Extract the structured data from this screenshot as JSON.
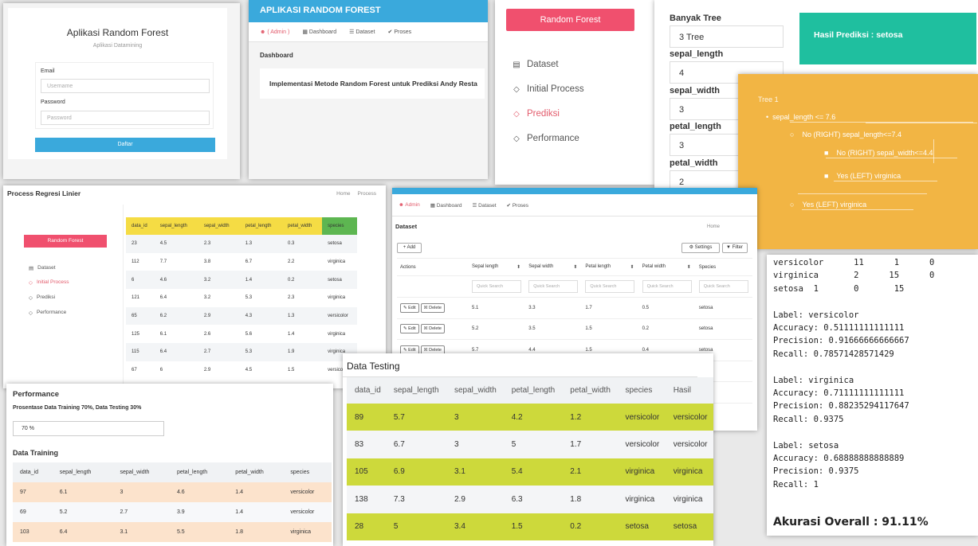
{
  "login": {
    "title": "Aplikasi Random Forest",
    "subtitle": "Aplikasi Datamining",
    "email_label": "Email",
    "email_placeholder": "Username",
    "password_label": "Password",
    "password_placeholder": "Password",
    "submit_label": "Daftar"
  },
  "app": {
    "header": "APLIKASI RANDOM FOREST",
    "nav": {
      "admin": "( Admin )",
      "dashboard": "Dashboard",
      "dataset": "Dataset",
      "proses": "Proses"
    },
    "section": "Dashboard",
    "card_text": "Implementasi Metode Random Forest untuk Prediksi Andy Resta"
  },
  "menu": {
    "brand": "Random Forest",
    "items": [
      {
        "label": "Dataset",
        "icon": "inbox-icon"
      },
      {
        "label": "Initial Process",
        "icon": "tag-icon"
      },
      {
        "label": "Prediksi",
        "icon": "tag-icon",
        "active": true
      },
      {
        "label": "Performance",
        "icon": "tag-icon"
      }
    ]
  },
  "form": {
    "fields": [
      {
        "label": "Banyak Tree",
        "value": "3 Tree"
      },
      {
        "label": "sepal_length",
        "value": "4"
      },
      {
        "label": "sepal_width",
        "value": "3"
      },
      {
        "label": "petal_length",
        "value": "3"
      },
      {
        "label": "petal_width",
        "value": "2"
      }
    ],
    "result": "Hasil Prediksi : setosa"
  },
  "tree": {
    "title": "Tree 1",
    "n1": "sepal_length <= 7.6",
    "n2": "No (RIGHT) sepal_length<=7.4",
    "n3": "No (RIGHT) sepal_width<=4.4",
    "n4": "Yes (LEFT) virginica",
    "n5": "Yes (LEFT) virginica"
  },
  "regresi": {
    "title": "Process Regresi Linier",
    "breadcrumb": [
      "Home",
      "Process"
    ],
    "brand": "Random Forest",
    "menu": [
      "Dataset",
      "Initial Process",
      "Prediksi",
      "Performance"
    ],
    "columns": [
      "data_id",
      "sepal_length",
      "sepal_width",
      "petal_length",
      "petal_width",
      "species"
    ],
    "rows": [
      [
        "23",
        "4.5",
        "2.3",
        "1.3",
        "0.3",
        "setosa"
      ],
      [
        "112",
        "7.7",
        "3.8",
        "6.7",
        "2.2",
        "virginica"
      ],
      [
        "6",
        "4.6",
        "3.2",
        "1.4",
        "0.2",
        "setosa"
      ],
      [
        "121",
        "6.4",
        "3.2",
        "5.3",
        "2.3",
        "virginica"
      ],
      [
        "65",
        "6.2",
        "2.9",
        "4.3",
        "1.3",
        "versicolor"
      ],
      [
        "125",
        "6.1",
        "2.6",
        "5.6",
        "1.4",
        "virginica"
      ],
      [
        "115",
        "6.4",
        "2.7",
        "5.3",
        "1.9",
        "virginica"
      ],
      [
        "67",
        "6",
        "2.9",
        "4.5",
        "1.5",
        "versicolor"
      ]
    ]
  },
  "dataset": {
    "nav": {
      "admin": "Admin",
      "dashboard": "Dashboard",
      "dataset": "Dataset",
      "proses": "Proses"
    },
    "title": "Dataset",
    "breadcrumb": "Home",
    "add_label": "+ Add",
    "settings_label": "Settings",
    "filter_label": "Filter",
    "columns": [
      "Actions",
      "Sepal length",
      "Sepal width",
      "Petal length",
      "Petal width",
      "Species"
    ],
    "search_placeholder": "Quick Search",
    "edit_label": "Edit",
    "delete_label": "Delete",
    "rows": [
      [
        "5.1",
        "3.3",
        "1.7",
        "0.5",
        "setosa"
      ],
      [
        "5.2",
        "3.5",
        "1.5",
        "0.2",
        "setosa"
      ],
      [
        "5.7",
        "4.4",
        "1.5",
        "0.4",
        "setosa"
      ],
      [
        "",
        "",
        "",
        "",
        "setosa"
      ],
      [
        "",
        "",
        "",
        "",
        "setosa"
      ],
      [
        "",
        "",
        "",
        "",
        "setosa"
      ]
    ]
  },
  "metrics": {
    "lines": [
      "versicolor      11      1      0",
      "virginica       2      15      0",
      "setosa  1       0       15",
      "",
      "Label: versicolor",
      "Accuracy: 0.51111111111111",
      "Precision: 0.91666666666667",
      "Recall: 0.78571428571429",
      "",
      "Label: virginica",
      "Accuracy: 0.71111111111111",
      "Precision: 0.88235294117647",
      "Recall: 0.9375",
      "",
      "Label: setosa",
      "Accuracy: 0.68888888888889",
      "Precision: 0.9375",
      "Recall: 1"
    ],
    "overall": "Akurasi Overall : 91.11%"
  },
  "performance": {
    "title": "Performance",
    "desc": "Prosentase Data Training 70%, Data Testing 30%",
    "input_value": "70 %",
    "training_title": "Data Training",
    "columns": [
      "data_id",
      "sepal_length",
      "sepal_width",
      "petal_length",
      "petal_width",
      "species"
    ],
    "rows": [
      [
        "97",
        "6.1",
        "3",
        "4.6",
        "1.4",
        "versicolor"
      ],
      [
        "69",
        "5.2",
        "2.7",
        "3.9",
        "1.4",
        "versicolor"
      ],
      [
        "103",
        "6.4",
        "3.1",
        "5.5",
        "1.8",
        "virginica"
      ]
    ]
  },
  "testing": {
    "title": "Data Testing",
    "columns": [
      "data_id",
      "sepal_length",
      "sepal_width",
      "petal_length",
      "petal_width",
      "species",
      "Hasil"
    ],
    "rows": [
      [
        "89",
        "5.7",
        "3",
        "4.2",
        "1.2",
        "versicolor",
        "versicolor"
      ],
      [
        "83",
        "6.7",
        "3",
        "5",
        "1.7",
        "versicolor",
        "versicolor"
      ],
      [
        "105",
        "6.9",
        "3.1",
        "5.4",
        "2.1",
        "virginica",
        "virginica"
      ],
      [
        "138",
        "7.3",
        "2.9",
        "6.3",
        "1.8",
        "virginica",
        "virginica"
      ],
      [
        "28",
        "5",
        "3.4",
        "1.5",
        "0.2",
        "setosa",
        "setosa"
      ]
    ]
  }
}
